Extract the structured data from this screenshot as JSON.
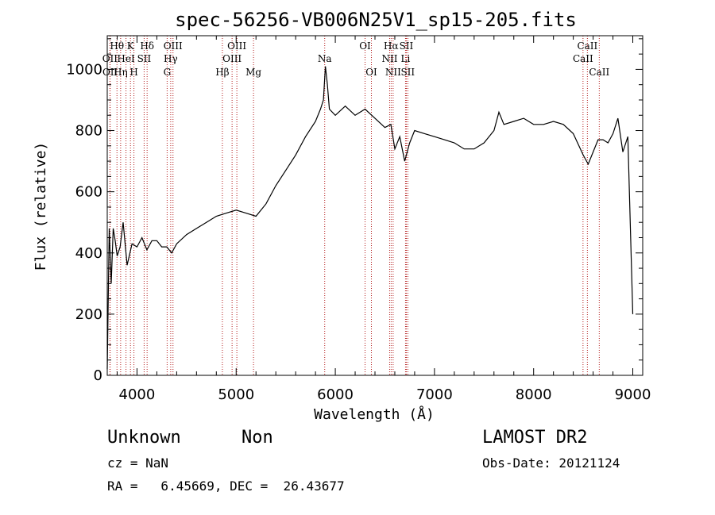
{
  "chart_data": {
    "type": "line",
    "title": "spec-56256-VB006N25V1_sp15-205.fits",
    "xlabel": "Wavelength (Å)",
    "ylabel": "Flux (relative)",
    "xlim": [
      3700,
      9100
    ],
    "ylim": [
      0,
      1110
    ],
    "x_ticks": [
      4000,
      5000,
      6000,
      7000,
      8000,
      9000
    ],
    "y_ticks": [
      0,
      200,
      400,
      600,
      800,
      1000
    ],
    "grid": false,
    "series": [
      {
        "x": [
          3700,
          3720,
          3740,
          3760,
          3780,
          3800,
          3830,
          3860,
          3900,
          3950,
          4000,
          4050,
          4100,
          4150,
          4200,
          4250,
          4300,
          4350,
          4400,
          4500,
          4600,
          4700,
          4800,
          4900,
          5000,
          5100,
          5200,
          5300,
          5400,
          5500,
          5600,
          5700,
          5800,
          5850,
          5880,
          5900,
          5920,
          5940,
          6000,
          6100,
          6200,
          6300,
          6400,
          6500,
          6560,
          6600,
          6650,
          6700,
          6750,
          6800,
          6900,
          7000,
          7100,
          7200,
          7300,
          7400,
          7500,
          7600,
          7650,
          7700,
          7800,
          7900,
          8000,
          8100,
          8200,
          8300,
          8400,
          8500,
          8550,
          8600,
          8650,
          8700,
          8750,
          8800,
          8850,
          8900,
          8950,
          9000
        ],
        "y": [
          20,
          480,
          300,
          480,
          440,
          390,
          420,
          500,
          360,
          430,
          420,
          450,
          410,
          440,
          440,
          420,
          420,
          400,
          430,
          460,
          480,
          500,
          520,
          530,
          540,
          530,
          520,
          560,
          620,
          670,
          720,
          780,
          830,
          870,
          900,
          1010,
          950,
          870,
          850,
          880,
          850,
          870,
          840,
          810,
          820,
          740,
          780,
          700,
          760,
          800,
          790,
          780,
          770,
          760,
          740,
          740,
          760,
          800,
          860,
          820,
          830,
          840,
          820,
          820,
          830,
          820,
          790,
          720,
          690,
          730,
          770,
          770,
          760,
          790,
          840,
          730,
          780,
          200
        ]
      }
    ],
    "lines": [
      {
        "label": "Hθ",
        "x": 3798,
        "row": 1
      },
      {
        "label": "OII",
        "x": 3727,
        "row": 2
      },
      {
        "label": "OII",
        "x": 3729,
        "row": 3
      },
      {
        "label": "K",
        "x": 3934,
        "row": 1
      },
      {
        "label": "HeI",
        "x": 3889,
        "row": 2
      },
      {
        "label": "Hη",
        "x": 3835,
        "row": 3
      },
      {
        "label": "H",
        "x": 3969,
        "row": 3
      },
      {
        "label": "Hδ",
        "x": 4102,
        "row": 1
      },
      {
        "label": "SII",
        "x": 4072,
        "row": 2
      },
      {
        "label": "OIII",
        "x": 4363,
        "row": 1
      },
      {
        "label": "Hγ",
        "x": 4340,
        "row": 2
      },
      {
        "label": "G",
        "x": 4304,
        "row": 3
      },
      {
        "label": "OIII",
        "x": 5007,
        "row": 1
      },
      {
        "label": "OIII",
        "x": 4959,
        "row": 2
      },
      {
        "label": "Hβ",
        "x": 4861,
        "row": 3
      },
      {
        "label": "Mg",
        "x": 5175,
        "row": 3
      },
      {
        "label": "Na",
        "x": 5893,
        "row": 2
      },
      {
        "label": "OI",
        "x": 6300,
        "row": 1
      },
      {
        "label": "OI",
        "x": 6364,
        "row": 3
      },
      {
        "label": "Hα",
        "x": 6563,
        "row": 1
      },
      {
        "label": "SII",
        "x": 6716,
        "row": 1
      },
      {
        "label": "NII",
        "x": 6548,
        "row": 2
      },
      {
        "label": "Li",
        "x": 6708,
        "row": 2
      },
      {
        "label": "NII",
        "x": 6583,
        "row": 3
      },
      {
        "label": "SII",
        "x": 6731,
        "row": 3
      },
      {
        "label": "CaII",
        "x": 8542,
        "row": 1
      },
      {
        "label": "CaII",
        "x": 8498,
        "row": 2
      },
      {
        "label": "CaII",
        "x": 8662,
        "row": 3
      }
    ]
  },
  "info": {
    "object_type": "Unknown",
    "subclass": "Non",
    "survey": "LAMOST DR2",
    "cz": "cz = NaN",
    "obs_date": "Obs-Date: 20121124",
    "radec": "RA =   6.45669, DEC =  26.43677"
  }
}
